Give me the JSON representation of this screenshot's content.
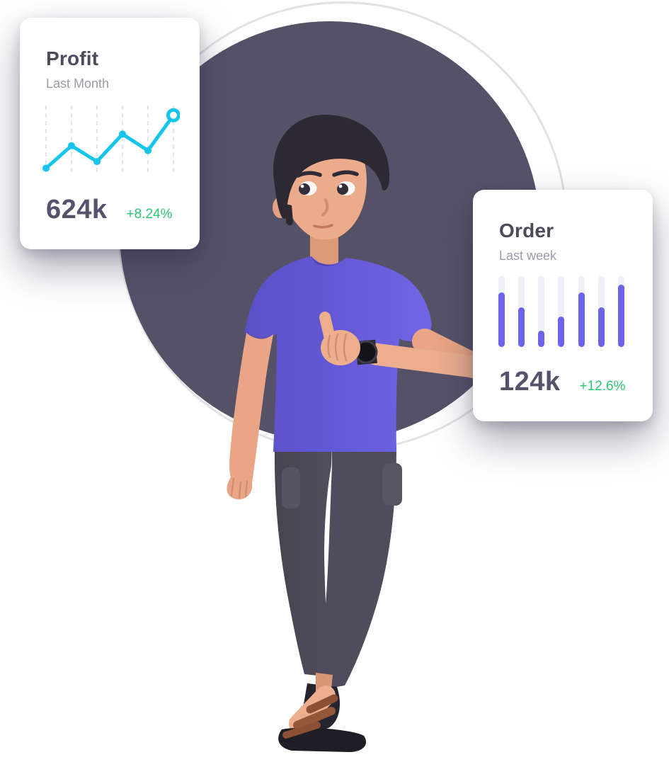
{
  "colors": {
    "page_background": "#FFFFFF",
    "background_circle": "#555268",
    "outline_ring": "#E2E1E5",
    "card_background": "#FFFFFF",
    "title_text": "#4C4B5C",
    "subtitle_text": "#9B9AA8",
    "value_text": "#55536B",
    "positive_green": "#2EC572",
    "line_accent": "#16C5EA",
    "bar_accent": "#6C63E8",
    "bar_track": "#EEEFF7"
  },
  "cards": {
    "profit": {
      "title": "Profit",
      "subtitle": "Last Month",
      "value": "624k",
      "change": "+8.24%"
    },
    "order": {
      "title": "Order",
      "subtitle": "Last week",
      "value": "124k",
      "change": "+12.6%"
    }
  },
  "chart_data": [
    {
      "type": "line",
      "title": "Profit",
      "subtitle": "Last Month",
      "values": [
        4,
        41,
        15,
        60,
        33,
        91
      ],
      "unit": "relative-height-percent",
      "summary_value": "624k",
      "change": "+8.24%",
      "line_color": "#16C5EA",
      "grid": "vertical-dashed",
      "gridline_count": 6,
      "grid_color": "#DCDDE3",
      "last_point_style": "open-ring",
      "legend": "none",
      "axis_labels": "none"
    },
    {
      "type": "bar",
      "title": "Order",
      "subtitle": "Last week",
      "bar_count": 7,
      "values": [
        77,
        56,
        23,
        43,
        77,
        56,
        88
      ],
      "unit": "percent-of-track",
      "summary_value": "124k",
      "change": "+12.6%",
      "bar_color": "#6C63E8",
      "track_color": "#EEEFF7",
      "grid": "off",
      "legend": "none",
      "axis_labels": "none"
    }
  ],
  "illustration": {
    "alt": "3D illustration of a young man with dark hair wearing a purple t-shirt, dark jogger pants, a black wristwatch and brown sandals, giving a thumbs up in front of a dark circle"
  }
}
